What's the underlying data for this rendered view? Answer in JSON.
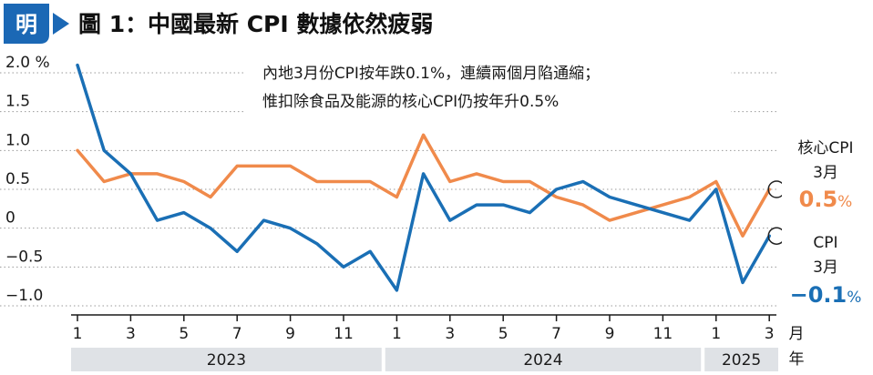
{
  "header": {
    "logo_char": "明",
    "figure_label": "圖 1：",
    "title": "中國最新 CPI 數據依然疲弱"
  },
  "chart_data": {
    "type": "line",
    "title": "中國最新 CPI 數據依然疲弱",
    "annotation": [
      "內地3月份CPI按年跌0.1%，連續兩個月陷通縮；",
      "惟扣除食品及能源的核心CPI仍按年升0.5%"
    ],
    "ylim": [
      -1.0,
      2.0
    ],
    "yticks": [
      "2.0 %",
      "1.5",
      "1.0",
      "0.5",
      "0",
      "−0.5",
      "−1.0"
    ],
    "ytick_values": [
      2.0,
      1.5,
      1.0,
      0.5,
      0,
      -0.5,
      -1.0
    ],
    "grid": true,
    "month_unit": "月",
    "year_unit": "年",
    "month_ticks": [
      "1",
      "3",
      "5",
      "7",
      "9",
      "11",
      "1",
      "3",
      "5",
      "7",
      "9",
      "11",
      "1",
      "3"
    ],
    "month_tick_index": [
      0,
      2,
      4,
      6,
      8,
      10,
      12,
      14,
      16,
      18,
      20,
      22,
      24,
      26
    ],
    "years": [
      {
        "label": "2023",
        "start": 0,
        "end": 11
      },
      {
        "label": "2024",
        "start": 12,
        "end": 23
      },
      {
        "label": "2025",
        "start": 24,
        "end": 26
      }
    ],
    "series": [
      {
        "name": "核心CPI",
        "color": "#f08a4b",
        "values": [
          1.0,
          0.6,
          0.7,
          0.7,
          0.6,
          0.4,
          0.8,
          0.8,
          0.8,
          0.6,
          0.6,
          0.6,
          0.4,
          1.2,
          0.6,
          0.7,
          0.6,
          0.6,
          0.4,
          0.3,
          0.1,
          0.2,
          0.3,
          0.4,
          0.6,
          -0.1,
          0.5
        ],
        "callout_month": "3月",
        "callout_value": "0.5",
        "callout_unit": "%"
      },
      {
        "name": "CPI",
        "color": "#1a6fb5",
        "values": [
          2.1,
          1.0,
          0.7,
          0.1,
          0.2,
          0.0,
          -0.3,
          0.1,
          0.0,
          -0.2,
          -0.5,
          -0.3,
          -0.8,
          0.7,
          0.1,
          0.3,
          0.3,
          0.2,
          0.5,
          0.6,
          0.4,
          0.3,
          0.2,
          0.1,
          0.5,
          -0.7,
          -0.1
        ],
        "callout_month": "3月",
        "callout_value": "−0.1",
        "callout_unit": "%"
      }
    ]
  }
}
